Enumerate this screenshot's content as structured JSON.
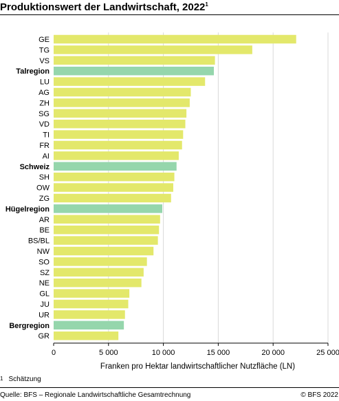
{
  "header": {
    "title": "Produktionswert der Landwirtschaft, 2022",
    "title_footnote_mark": "1"
  },
  "footnote": {
    "mark": "1",
    "text": "Schätzung"
  },
  "footer": {
    "source": "Quelle: BFS – Regionale Landwirtschaftliche Gesamtrechnung",
    "copyright": "© BFS 2022"
  },
  "colors": {
    "canton_bar": "#e3e86b",
    "region_bar": "#95d6ac",
    "axis": "#000000",
    "grid": "#d9d9d9"
  },
  "chart_data": {
    "type": "bar",
    "orientation": "horizontal",
    "title": "Produktionswert der Landwirtschaft, 2022",
    "xlabel": "Franken pro Hektar landwirtschaftlicher Nutzfläche (LN)",
    "ylabel": "",
    "xlim": [
      0,
      25000
    ],
    "xticks": [
      0,
      5000,
      10000,
      15000,
      20000,
      25000
    ],
    "xtick_labels": [
      "0",
      "5 000",
      "10 000",
      "15 000",
      "20 000",
      "25 000"
    ],
    "grid": true,
    "categories": [
      "GE",
      "TG",
      "VS",
      "Talregion",
      "LU",
      "AG",
      "ZH",
      "SG",
      "VD",
      "TI",
      "FR",
      "AI",
      "Schweiz",
      "SH",
      "OW",
      "ZG",
      "Hügelregion",
      "AR",
      "BE",
      "BS/BL",
      "NW",
      "SO",
      "SZ",
      "NE",
      "GL",
      "JU",
      "UR",
      "Bergregion",
      "GR"
    ],
    "values": [
      22100,
      18100,
      14700,
      14600,
      13800,
      12500,
      12400,
      12100,
      12000,
      11800,
      11700,
      11400,
      11200,
      11000,
      10900,
      10700,
      9900,
      9700,
      9600,
      9500,
      9100,
      8500,
      8200,
      8000,
      6900,
      6800,
      6500,
      6400,
      5900
    ],
    "highlighted": [
      "Talregion",
      "Schweiz",
      "Hügelregion",
      "Bergregion"
    ]
  }
}
